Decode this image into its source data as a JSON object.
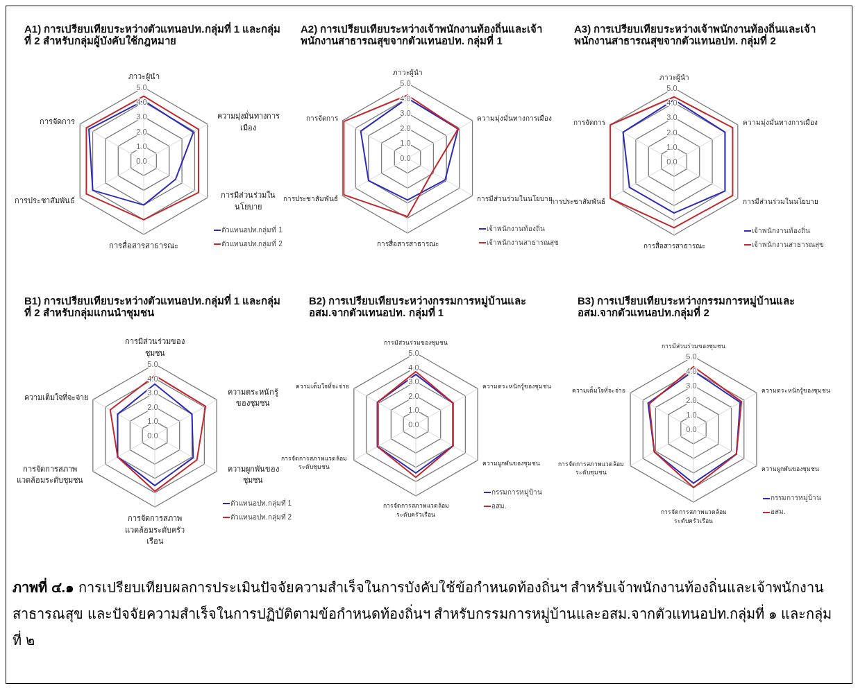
{
  "chart_data": [
    {
      "type": "radar",
      "title": "A1) การเปรียบเทียบระหว่างตัวแทนอปท.กลุ่มที่ 1 และกลุ่มที่ 2 สำหรับกลุ่มผู้บังคับใช้กฎหมาย",
      "categories": [
        "ภาวะผู้นำ",
        "ความมุ่งมั่นทางการเมือง",
        "การมีส่วนร่วมในนโยบาย",
        "การสื่อสารสาธารณะ",
        "การประชาสัมพันธ์",
        "การจัดการ"
      ],
      "ylim": [
        0,
        5
      ],
      "yticks": [
        {
          "value": 0,
          "label": "0.0"
        },
        {
          "value": 1,
          "label": "1.0"
        },
        {
          "value": 2,
          "label": "2.0"
        },
        {
          "value": 3,
          "label": "3.0"
        },
        {
          "value": 4,
          "label": "4.0"
        },
        {
          "value": 5,
          "label": "5.0"
        }
      ],
      "grid": true,
      "legend": "bottom right",
      "series": [
        {
          "name": "ตัวแทนอปท.กลุ่มที่ 1",
          "color": "#2b2bb8",
          "values": [
            4.1,
            3.9,
            2.5,
            3.0,
            4.0,
            4.3
          ]
        },
        {
          "name": "ตัวแทนอปท.กลุ่มที่ 2",
          "color": "#c0282d",
          "values": [
            4.4,
            4.3,
            4.3,
            4.0,
            4.5,
            4.5
          ]
        }
      ]
    },
    {
      "type": "radar",
      "title": "A2) การเปรียบเทียบระหว่างเจ้าพนักงานท้องถิ่นและเจ้าพนักงานสาธารณสุขจากตัวแทนอปท. กลุ่มที่ 1",
      "categories": [
        "ภาวะผู้นำ",
        "ความมุ่งมั่นทางการเมือง",
        "การมีส่วนร่วมในนโยบาย",
        "การสื่อสารสาธารณะ",
        "การประชาสัมพันธ์",
        "การจัดการ"
      ],
      "ylim": [
        0,
        5
      ],
      "yticks": [
        {
          "value": 0,
          "label": "0.0"
        },
        {
          "value": 1,
          "label": "1.0"
        },
        {
          "value": 2,
          "label": "2.0"
        },
        {
          "value": 3,
          "label": "3.0"
        },
        {
          "value": 4,
          "label": "4.0"
        },
        {
          "value": 5,
          "label": "5.0"
        }
      ],
      "grid": true,
      "legend": "bottom right",
      "series": [
        {
          "name": "เจ้าพนักงานท้องถิ่น",
          "color": "#2b2bb8",
          "values": [
            4.0,
            3.9,
            2.9,
            2.8,
            3.0,
            3.6
          ]
        },
        {
          "name": "เจ้าพนักงานสาธารณสุข",
          "color": "#c0282d",
          "values": [
            4.2,
            3.9,
            1.9,
            3.9,
            4.9,
            4.9
          ]
        }
      ]
    },
    {
      "type": "radar",
      "title": "A3) การเปรียบเทียบระหว่างเจ้าพนักงานท้องถิ่นและเจ้าพนักงานสาธารณสุขจากตัวแทนอปท. กลุ่มที่ 2",
      "categories": [
        "ภาวะผู้นำ",
        "ความมุ่งมั่นทางการเมือง",
        "การมีส่วนร่วมในนโยบาย",
        "การสื่อสารสาธารณะ",
        "การประชาสัมพันธ์",
        "การจัดการ"
      ],
      "ylim": [
        0,
        5
      ],
      "yticks": [
        {
          "value": 0,
          "label": "0.0"
        },
        {
          "value": 1,
          "label": "1.0"
        },
        {
          "value": 2,
          "label": "2.0"
        },
        {
          "value": 3,
          "label": "3.0"
        },
        {
          "value": 4,
          "label": "4.0"
        },
        {
          "value": 5,
          "label": "5.0"
        }
      ],
      "grid": true,
      "legend": "bottom right",
      "series": [
        {
          "name": "เจ้าพนักงานท้องถิ่น",
          "color": "#2b2bb8",
          "values": [
            4.2,
            4.0,
            4.0,
            3.5,
            3.5,
            4.0
          ]
        },
        {
          "name": "เจ้าพนักงานสาธารณสุข",
          "color": "#c0282d",
          "values": [
            4.4,
            4.6,
            4.6,
            4.5,
            5.0,
            5.0
          ]
        }
      ]
    },
    {
      "type": "radar",
      "title": "B1) การเปรียบเทียบระหว่างตัวแทนอปท.กลุ่มที่ 1 และกลุ่มที่ 2 สำหรับกลุ่มแกนนำชุมชน",
      "categories": [
        "การมีส่วนร่วมของชุมชน",
        "ความตระหนักรู้ของชุมชน",
        "ความผูกพันของชุมชน",
        "การจัดการสภาพแวดล้อมระดับครัวเรือน",
        "การจัดการสภาพแวดล้อมระดับชุมชน",
        "ความเต็มใจที่จะจ่าย"
      ],
      "ylim": [
        0,
        5
      ],
      "yticks": [
        {
          "value": 0,
          "label": "0.0"
        },
        {
          "value": 1,
          "label": "1.0"
        },
        {
          "value": 2,
          "label": "2.0"
        },
        {
          "value": 3,
          "label": "3.0"
        },
        {
          "value": 4,
          "label": "4.0"
        },
        {
          "value": 5,
          "label": "5.0"
        }
      ],
      "grid": true,
      "legend": "bottom right",
      "series": [
        {
          "name": "ตัวแทนอปท.กลุ่มที่ 1",
          "color": "#2b2bb8",
          "values": [
            3.6,
            3.0,
            3.1,
            3.5,
            3.0,
            3.0
          ]
        },
        {
          "name": "ตัวแทนอปท.กลุ่มที่ 2",
          "color": "#c0282d",
          "values": [
            4.2,
            4.1,
            3.4,
            3.9,
            3.0,
            3.6
          ]
        }
      ]
    },
    {
      "type": "radar",
      "title": "B2) การเปรียบเทียบระหว่างกรรมการหมู่บ้านและอสม.จากตัวแทนอปท. กลุ่มที่ 1",
      "categories": [
        "การมีส่วนร่วมของชุมชน",
        "ความตระหนักรู้ของชุมชน",
        "ความผูกพันของชุมชน",
        "การจัดการสภาพแวดล้อมระดับครัวเรือน",
        "การจัดการสภาพแวดล้อมระดับชุมชน",
        "ความเต็มใจที่จะจ่าย"
      ],
      "ylim": [
        0,
        5
      ],
      "yticks": [
        {
          "value": 0,
          "label": "0.0"
        },
        {
          "value": 1,
          "label": "1.0"
        },
        {
          "value": 2,
          "label": "2.0"
        },
        {
          "value": 3,
          "label": "3.0"
        },
        {
          "value": 4,
          "label": "4.0"
        },
        {
          "value": 5,
          "label": "5.0"
        }
      ],
      "grid": true,
      "legend": "bottom right",
      "series": [
        {
          "name": "กรรมการหมู่บ้าน",
          "color": "#2b2bb8",
          "values": [
            3.5,
            3.0,
            3.0,
            3.4,
            3.1,
            3.1
          ]
        },
        {
          "name": "อสม.",
          "color": "#c0282d",
          "values": [
            3.7,
            3.0,
            3.0,
            3.7,
            3.1,
            3.1
          ]
        }
      ]
    },
    {
      "type": "radar",
      "title": "B3) การเปรียบเทียบระหว่างกรรมการหมู่บ้านและอสม.จากตัวแทนอปท.กลุ่มที่ 2",
      "categories": [
        "การมีส่วนร่วมของชุมชน",
        "ความตระหนักรู้ของชุมชน",
        "ความผูกพันของชุมชน",
        "การจัดการสภาพแวดล้อมระดับครัวเรือน",
        "การจัดการสภาพแวดล้อมระดับชุมชน",
        "ความเต็มใจที่จะจ่าย"
      ],
      "ylim": [
        0,
        5
      ],
      "yticks": [
        {
          "value": 0,
          "label": "0.0"
        },
        {
          "value": 1,
          "label": "1.0"
        },
        {
          "value": 2,
          "label": "2.0"
        },
        {
          "value": 3,
          "label": "3.0"
        },
        {
          "value": 4,
          "label": "4.0"
        },
        {
          "value": 5,
          "label": "5.0"
        }
      ],
      "grid": true,
      "legend": "bottom right",
      "annotations": [
        "**ภาพที่ ๔.๑** การเปรียบเทียบผลการประเมินปัจจัยความสำเร็จในการบังคับใช้ข้อกำหนดท้องถิ่นฯ สำหรับเจ้าพนักงานท้องถิ่นและเจ้าพนักงานสาธารณสุข และปัจจัยความสำเร็จในการปฏิบัติตามข้อกำหนดท้องถิ่นฯ สำหรับกรรมการหมู่บ้านและอสม.จากตัวแทนอปท.กลุ่มที่ ๑ และกลุ่มที่ ๒"
      ],
      "series": [
        {
          "name": "กรรมการหมู่บ้าน",
          "color": "#2b2bb8",
          "values": [
            4.0,
            3.7,
            3.4,
            3.7,
            3.1,
            3.6
          ]
        },
        {
          "name": "อสม.",
          "color": "#c0282d",
          "values": [
            4.3,
            3.8,
            3.4,
            4.0,
            3.1,
            3.5
          ]
        }
      ]
    }
  ]
}
